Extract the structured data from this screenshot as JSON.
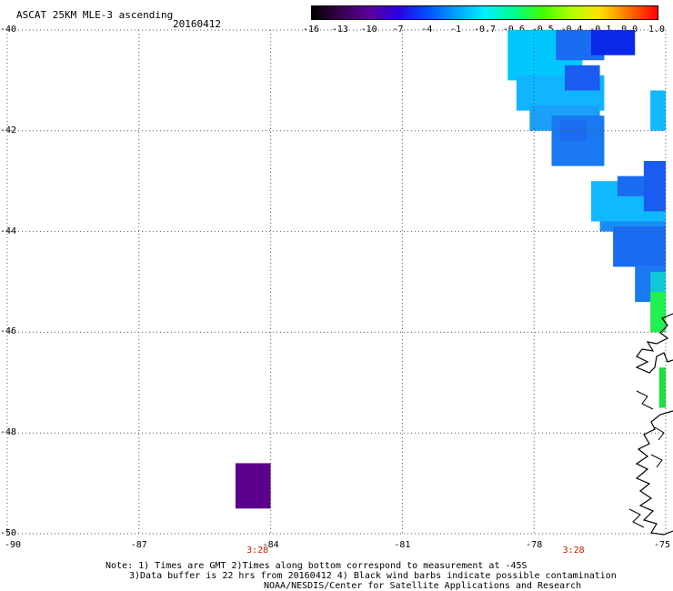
{
  "header": {
    "title": "ASCAT 25KM MLE-3 ascending",
    "date": "20160412"
  },
  "colorbar": {
    "labels": [
      "-16",
      "-13",
      "-10",
      "-7",
      "-4",
      "-1",
      "-0.7",
      "-0.6",
      "-0.5",
      "-0.4",
      "-0.1",
      "0.0",
      "1.0"
    ],
    "colors": [
      "#000000",
      "#3a0050",
      "#5a00a0",
      "#2a00e0",
      "#0050ff",
      "#00a0ff",
      "#00f0ff",
      "#00ff90",
      "#40ff00",
      "#b0ff00",
      "#ffe000",
      "#ff7000",
      "#ff0000"
    ]
  },
  "chart_data": {
    "type": "heatmap",
    "title": "ASCAT 25KM MLE-3 ascending",
    "xlim": [
      -90,
      -75
    ],
    "ylim": [
      -50,
      -40
    ],
    "grid": true,
    "x_ticks": [
      "-90",
      "-87",
      "-84",
      "-81",
      "-78",
      "-75"
    ],
    "y_ticks": [
      "-40",
      "-42",
      "-44",
      "-46",
      "-48",
      "-50"
    ],
    "x_tick_values": [
      -90,
      -87,
      -84,
      -81,
      -78,
      -75
    ],
    "y_tick_values": [
      -40,
      -42,
      -44,
      -46,
      -48,
      -50
    ],
    "time_labels": [
      {
        "lon": -84.3,
        "text": "3:28"
      },
      {
        "lon": -77.1,
        "text": "3:28"
      }
    ],
    "cells": [
      {
        "lon0": -78.6,
        "lon1": -76.9,
        "lat0": -41.0,
        "lat1": -40.0,
        "color": "#00c8ff"
      },
      {
        "lon0": -77.5,
        "lon1": -76.4,
        "lat0": -40.6,
        "lat1": -40.0,
        "color": "#1a6cf0"
      },
      {
        "lon0": -76.7,
        "lon1": -75.7,
        "lat0": -40.5,
        "lat1": -40.0,
        "color": "#0a28e8"
      },
      {
        "lon0": -78.4,
        "lon1": -76.4,
        "lat0": -41.6,
        "lat1": -40.9,
        "color": "#10b4ff"
      },
      {
        "lon0": -77.3,
        "lon1": -76.5,
        "lat0": -41.2,
        "lat1": -40.7,
        "color": "#1a5cf0"
      },
      {
        "lon0": -78.1,
        "lon1": -76.5,
        "lat0": -42.0,
        "lat1": -41.5,
        "color": "#1aa0f8"
      },
      {
        "lon0": -77.6,
        "lon1": -76.4,
        "lat0": -42.7,
        "lat1": -41.7,
        "color": "#1a78f0"
      },
      {
        "lon0": -77.4,
        "lon1": -76.8,
        "lat0": -42.2,
        "lat1": -41.8,
        "color": "#1a6cf0"
      },
      {
        "lon0": -75.35,
        "lon1": -75.0,
        "lat0": -42.0,
        "lat1": -41.2,
        "color": "#10b8ff"
      },
      {
        "lon0": -76.7,
        "lon1": -75.0,
        "lat0": -43.8,
        "lat1": -43.0,
        "color": "#10b8ff"
      },
      {
        "lon0": -76.1,
        "lon1": -75.0,
        "lat0": -43.3,
        "lat1": -42.9,
        "color": "#1a6cf0"
      },
      {
        "lon0": -75.5,
        "lon1": -75.0,
        "lat0": -43.6,
        "lat1": -42.6,
        "color": "#1a5cf0"
      },
      {
        "lon0": -76.5,
        "lon1": -75.0,
        "lat0": -44.0,
        "lat1": -43.8,
        "color": "#1a8cf5"
      },
      {
        "lon0": -76.2,
        "lon1": -75.0,
        "lat0": -44.7,
        "lat1": -43.9,
        "color": "#1a6cf0"
      },
      {
        "lon0": -75.7,
        "lon1": -75.0,
        "lat0": -45.4,
        "lat1": -44.7,
        "color": "#1a78f0"
      },
      {
        "lon0": -75.35,
        "lon1": -75.0,
        "lat0": -45.2,
        "lat1": -44.8,
        "color": "#10c8d8"
      },
      {
        "lon0": -75.35,
        "lon1": -75.0,
        "lat0": -46.0,
        "lat1": -45.2,
        "color": "#20f050"
      },
      {
        "lon0": -75.15,
        "lon1": -75.0,
        "lat0": -47.5,
        "lat1": -46.7,
        "color": "#20e040"
      },
      {
        "lon0": -84.8,
        "lon1": -84.0,
        "lat0": -49.5,
        "lat1": -48.6,
        "color": "#5a008c"
      }
    ]
  },
  "note": {
    "line1": "Note: 1) Times are GMT 2)Times along bottom correspond to measurement at -45S",
    "line2": "3)Data buffer is 22 hrs from 20160412 4) Black wind barbs indicate possible contamination",
    "line3": "NOAA/NESDIS/Center for Satellite Applications and Research"
  }
}
